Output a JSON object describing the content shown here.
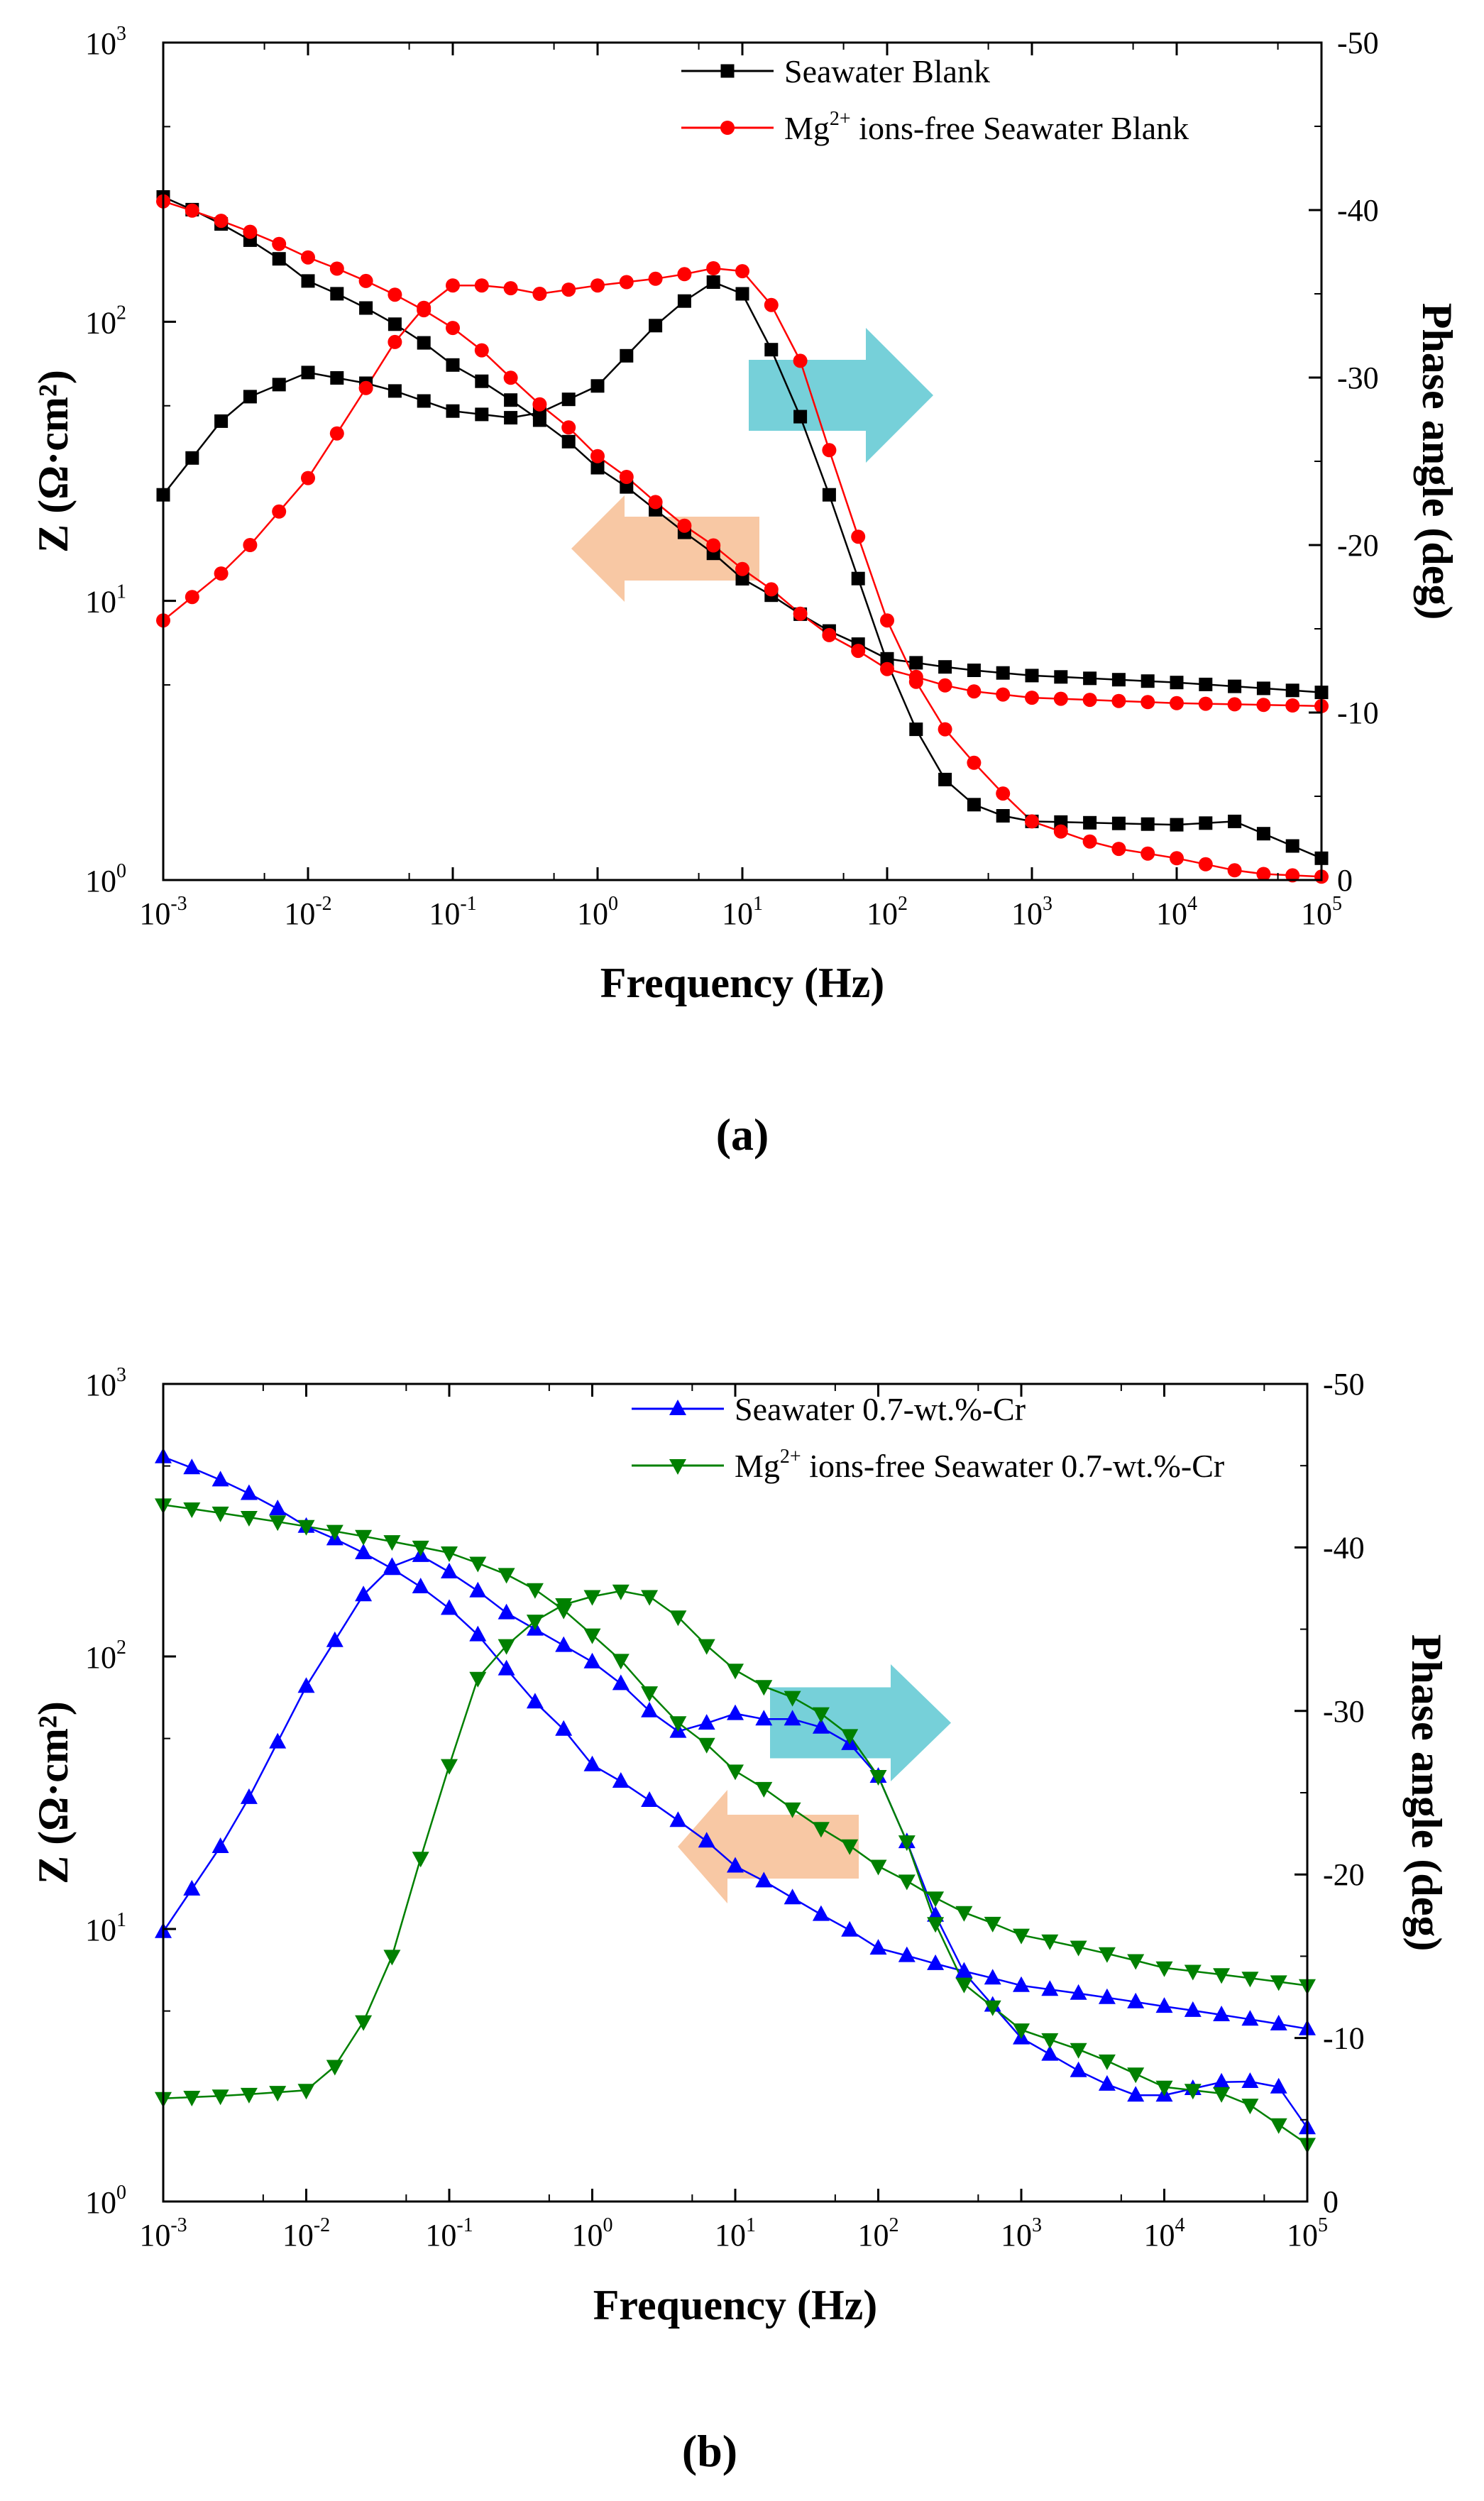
{
  "chart_data": [
    {
      "type": "line",
      "panel_label": "(a)",
      "xlabel": "Frequency (Hz)",
      "ylabel_left": "Z (Ω·cm²)",
      "ylabel_right": "Phase angle (deg)",
      "x_scale": "log",
      "xlim": [
        0.001,
        100000
      ],
      "y_left_scale": "log",
      "y_left_lim": [
        1,
        1000
      ],
      "y_right_lim": [
        0,
        -50
      ],
      "x_tick_base": "10",
      "x_tick_exponents": [
        "-3",
        "-2",
        "-1",
        "0",
        "1",
        "2",
        "3",
        "4",
        "5"
      ],
      "y_left_tick_base": "10",
      "y_left_tick_exponents": [
        "0",
        "1",
        "2",
        "3"
      ],
      "y_right_ticks": [
        "0",
        "-10",
        "-20",
        "-30",
        "-40",
        "-50"
      ],
      "legend_position": "top-right",
      "arrows": [
        {
          "direction": "right",
          "color": "#5EC8D2",
          "points_to_axis": "right"
        },
        {
          "direction": "left",
          "color": "#F7BE94",
          "points_to_axis": "left"
        }
      ],
      "series": [
        {
          "name": "Seawater Blank",
          "legend_main": "Seawater Blank",
          "legend_sup": "",
          "legend_rest": "",
          "color": "#000000",
          "marker": "square",
          "impedance": {
            "logf": [
              -3.0,
              -2.0,
              -1.0,
              -0.5,
              0.0,
              0.5,
              1.0,
              1.5,
              2.0,
              2.5,
              3.0,
              4.0,
              5.0
            ],
            "values": [
              280,
              140,
              70,
              48,
              30,
              19,
              12,
              8.2,
              6.2,
              5.7,
              5.4,
              5.1,
              4.7
            ]
          },
          "phase": {
            "logf": [
              -3.0,
              -2.5,
              -2.0,
              -1.5,
              -1.0,
              -0.5,
              0.0,
              0.5,
              0.8,
              1.0,
              1.3,
              1.6,
              2.0,
              2.3,
              2.5,
              2.7,
              3.0,
              4.0,
              4.4,
              5.0
            ],
            "values": [
              -23,
              -28.5,
              -30.3,
              -29.5,
              -28,
              -27.5,
              -29.5,
              -34,
              -35.7,
              -35,
              -30,
              -23,
              -13,
              -7,
              -5,
              -4,
              -3.5,
              -3.3,
              -3.5,
              -1.3
            ]
          }
        },
        {
          "name": "Mg2+ ions-free Seawater Blank",
          "legend_main": "Mg",
          "legend_sup": "2+",
          "legend_rest": " ions-free Seawater Blank",
          "color": "#FF0000",
          "marker": "circle",
          "impedance": {
            "logf": [
              -3.0,
              -2.0,
              -1.0,
              -0.5,
              0.0,
              0.5,
              1.0,
              1.5,
              2.0,
              2.5,
              3.0,
              4.0,
              5.0
            ],
            "values": [
              270,
              170,
              95,
              55,
              33,
              20,
              13,
              8,
              5.7,
              4.8,
              4.5,
              4.3,
              4.2
            ]
          },
          "phase": {
            "logf": [
              -3.0,
              -2.5,
              -2.0,
              -1.7,
              -1.3,
              -1.0,
              -0.7,
              -0.4,
              0.0,
              0.5,
              0.9,
              1.1,
              1.4,
              1.7,
              2.0,
              2.3,
              2.7,
              3.0,
              3.5,
              4.0,
              4.5,
              5.0
            ],
            "values": [
              -15.5,
              -19,
              -24,
              -28,
              -33.5,
              -35.5,
              -35.5,
              -35,
              -35.5,
              -36,
              -36.7,
              -36,
              -31,
              -23,
              -15.5,
              -10,
              -6,
              -3.5,
              -2,
              -1.3,
              -0.4,
              -0.2
            ]
          }
        }
      ]
    },
    {
      "type": "line",
      "panel_label": "(b)",
      "xlabel": "Frequency (Hz)",
      "ylabel_left": "Z (Ω·cm²)",
      "ylabel_right": "Phase angle (deg)",
      "x_scale": "log",
      "xlim": [
        0.001,
        100000
      ],
      "y_left_scale": "log",
      "y_left_lim": [
        1,
        1000
      ],
      "y_right_lim": [
        0,
        -50
      ],
      "x_tick_base": "10",
      "x_tick_exponents": [
        "-3",
        "-2",
        "-1",
        "0",
        "1",
        "2",
        "3",
        "4",
        "5"
      ],
      "y_left_tick_base": "10",
      "y_left_tick_exponents": [
        "0",
        "1",
        "2",
        "3"
      ],
      "y_right_ticks": [
        "0",
        "-10",
        "-20",
        "-30",
        "-40",
        "-50"
      ],
      "legend_position": "top-right",
      "arrows": [
        {
          "direction": "right",
          "color": "#5EC8D2",
          "points_to_axis": "right"
        },
        {
          "direction": "left",
          "color": "#F7BE94",
          "points_to_axis": "left"
        }
      ],
      "series": [
        {
          "name": "Seawater 0.7-wt.%-Cr",
          "legend_main": "Seawater 0.7-wt.%-Cr",
          "legend_sup": "",
          "legend_rest": "",
          "color": "#0000FF",
          "marker": "triangle-up",
          "impedance": {
            "logf": [
              -3.0,
              -2.0,
              -1.0,
              -0.5,
              0.0,
              0.5,
              1.0,
              1.5,
              2.0,
              2.5,
              3.0,
              4.0,
              5.0
            ],
            "values": [
              540,
              300,
              150,
              75,
              40,
              27,
              17,
              12,
              8.5,
              7.2,
              6.2,
              5.2,
              4.3
            ]
          },
          "phase": {
            "logf": [
              -3.0,
              -2.5,
              -2.0,
              -1.5,
              -1.2,
              -0.9,
              -0.6,
              -0.3,
              0.0,
              0.3,
              0.5,
              0.7,
              0.9,
              1.2,
              1.5,
              1.8,
              2.0,
              2.3,
              2.5,
              3.0,
              3.5,
              3.8,
              4.0,
              4.5,
              4.8,
              5.0
            ],
            "values": [
              -16.5,
              -23,
              -31.5,
              -38.5,
              -39.5,
              -38,
              -36,
              -34.5,
              -33,
              -31,
              -29,
              -28.5,
              -30,
              -29.5,
              -29.5,
              -28,
              -26,
              -20,
              -15,
              -10,
              -7.5,
              -6.5,
              -6.5,
              -7.5,
              -7,
              -4.5
            ]
          }
        },
        {
          "name": "Mg2+ ions-free Seawater 0.7-wt.%-Cr",
          "legend_main": "Mg",
          "legend_sup": "2+",
          "legend_rest": " ions-free Seawater 0.7-wt.%-Cr",
          "color": "#008000",
          "marker": "triangle-down",
          "impedance": {
            "logf": [
              -3.0,
              -2.0,
              -1.0,
              -0.5,
              0.0,
              0.5,
              1.0,
              1.5,
              2.0,
              2.5,
              3.0,
              4.0,
              5.0
            ],
            "values": [
              360,
              300,
              240,
              190,
              120,
              62,
              38,
              25,
              17,
              12,
              9.5,
              7.2,
              6.2
            ]
          },
          "phase": {
            "logf": [
              -3.0,
              -2.5,
              -2.0,
              -1.7,
              -1.4,
              -1.1,
              -0.8,
              -0.5,
              -0.2,
              0.0,
              0.3,
              0.5,
              0.7,
              0.9,
              1.2,
              1.5,
              1.8,
              2.0,
              2.3,
              2.5,
              3.0,
              3.5,
              4.0,
              4.5,
              5.0
            ],
            "values": [
              -6.3,
              -6.5,
              -6.8,
              -9,
              -15,
              -24,
              -32,
              -35,
              -36.5,
              -37,
              -37.5,
              -36.5,
              -35,
              -33,
              -31.5,
              -30.5,
              -28.5,
              -26,
              -20,
              -14,
              -10.5,
              -9,
              -7,
              -6.5,
              -3.5
            ]
          }
        }
      ]
    }
  ]
}
